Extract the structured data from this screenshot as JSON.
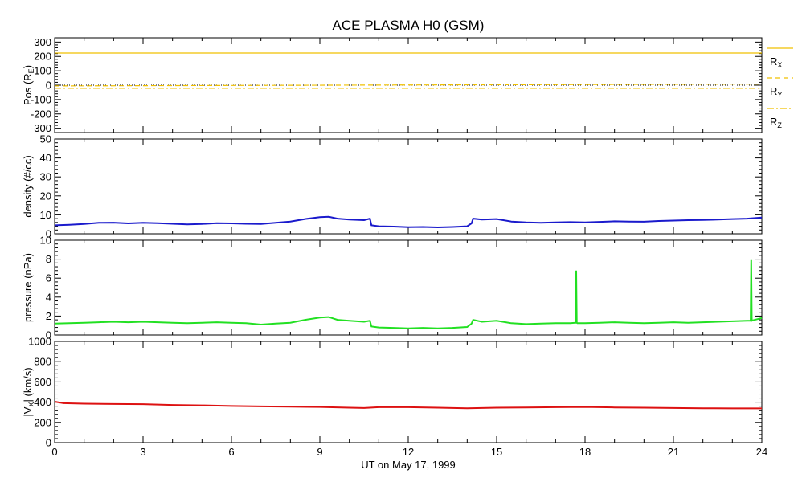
{
  "title": "ACE PLASMA H0 (GSM)",
  "xlabel": "UT on May 17, 1999",
  "x_ticks": [
    "0",
    "3",
    "6",
    "9",
    "12",
    "15",
    "18",
    "21",
    "24"
  ],
  "colors": {
    "rx": "#f0c000",
    "ry": "#f0c000",
    "rz": "#f0c000",
    "density": "#1a1acc",
    "pressure": "#22e022",
    "vx": "#dd1111",
    "axis": "#000000"
  },
  "chart_data": [
    {
      "type": "line",
      "panel": "position",
      "ylabel": {
        "main": "Pos (R",
        "sub": "E",
        "close": ")"
      },
      "ylim": [
        -330,
        330
      ],
      "y_ticks": [
        -300,
        -200,
        -100,
        0,
        100,
        200,
        300
      ],
      "x_range": [
        0,
        24
      ],
      "series": [
        {
          "name": "R",
          "sub": "X",
          "style": "solid",
          "x": [
            0,
            24
          ],
          "y": [
            224,
            224
          ]
        },
        {
          "name": "R",
          "sub": "Y",
          "style": "dashed",
          "x": [
            0,
            24
          ],
          "y": [
            -5,
            8
          ]
        },
        {
          "name": "R",
          "sub": "Z",
          "style": "dashdot",
          "x": [
            0,
            24
          ],
          "y": [
            -22,
            -22
          ]
        }
      ],
      "zero_line": true
    },
    {
      "type": "line",
      "panel": "density",
      "ylabel": {
        "main": "density (#/cc)"
      },
      "ylim": [
        0,
        50
      ],
      "y_ticks": [
        0,
        10,
        20,
        30,
        40,
        50
      ],
      "x_range": [
        0,
        24
      ],
      "series": [
        {
          "name": "density",
          "x": [
            0,
            0.5,
            1,
            1.5,
            2,
            2.5,
            3,
            3.5,
            4,
            4.5,
            5,
            5.5,
            6,
            6.5,
            7,
            7.5,
            8,
            8.5,
            9,
            9.3,
            9.6,
            10,
            10.5,
            10.7,
            10.75,
            11,
            11.5,
            12,
            12.5,
            13,
            13.5,
            14,
            14.15,
            14.2,
            14.5,
            15,
            15.5,
            16,
            16.5,
            17,
            17.5,
            18,
            18.5,
            19,
            19.5,
            20,
            20.5,
            21,
            21.5,
            22,
            22.5,
            23,
            23.5,
            24
          ],
          "y": [
            4.5,
            4.8,
            5.2,
            5.8,
            5.9,
            5.5,
            5.8,
            5.6,
            5.3,
            5.0,
            5.2,
            5.6,
            5.5,
            5.3,
            5.2,
            5.8,
            6.5,
            7.8,
            8.8,
            9.0,
            8.0,
            7.5,
            7.2,
            8.0,
            4.5,
            4.0,
            3.8,
            3.5,
            3.6,
            3.4,
            3.6,
            4.0,
            5.5,
            8.0,
            7.5,
            7.8,
            6.5,
            6.0,
            5.8,
            6.0,
            6.2,
            6.0,
            6.3,
            6.6,
            6.5,
            6.4,
            6.8,
            7.0,
            7.2,
            7.3,
            7.5,
            7.8,
            8.0,
            8.6
          ]
        }
      ]
    },
    {
      "type": "line",
      "panel": "pressure",
      "ylabel": {
        "main": "pressure (nPa)"
      },
      "ylim": [
        0,
        10
      ],
      "y_ticks": [
        0,
        2,
        4,
        6,
        8,
        10
      ],
      "x_range": [
        0,
        24
      ],
      "series": [
        {
          "name": "pressure",
          "x": [
            0,
            0.5,
            1,
            1.5,
            2,
            2.5,
            3,
            3.5,
            4,
            4.5,
            5,
            5.5,
            6,
            6.5,
            7,
            7.5,
            8,
            8.5,
            9,
            9.3,
            9.6,
            10,
            10.5,
            10.7,
            10.75,
            11,
            11.5,
            12,
            12.5,
            13,
            13.5,
            14,
            14.15,
            14.2,
            14.5,
            15,
            15.5,
            16,
            16.5,
            17,
            17.5,
            17.68,
            17.7,
            17.72,
            17.74,
            18,
            18.5,
            19,
            19.5,
            20,
            20.5,
            21,
            21.5,
            22,
            22.5,
            23,
            23.5,
            23.62,
            23.64,
            23.66,
            23.7,
            24
          ],
          "y": [
            1.2,
            1.25,
            1.3,
            1.35,
            1.4,
            1.35,
            1.4,
            1.35,
            1.3,
            1.25,
            1.3,
            1.35,
            1.3,
            1.25,
            1.1,
            1.2,
            1.3,
            1.6,
            1.85,
            1.9,
            1.6,
            1.5,
            1.4,
            1.5,
            0.9,
            0.8,
            0.75,
            0.7,
            0.75,
            0.7,
            0.75,
            0.85,
            1.2,
            1.6,
            1.4,
            1.5,
            1.25,
            1.15,
            1.2,
            1.25,
            1.25,
            1.3,
            6.8,
            1.3,
            1.25,
            1.25,
            1.3,
            1.35,
            1.3,
            1.25,
            1.3,
            1.35,
            1.3,
            1.35,
            1.4,
            1.45,
            1.5,
            1.5,
            7.9,
            1.5,
            1.55,
            1.8
          ]
        }
      ]
    },
    {
      "type": "line",
      "panel": "vx",
      "ylabel": {
        "main": "|V",
        "sub": "X",
        "close": "| (km/s)"
      },
      "ylim": [
        0,
        1000
      ],
      "y_ticks": [
        0,
        200,
        400,
        600,
        800,
        1000
      ],
      "x_range": [
        0,
        24
      ],
      "series": [
        {
          "name": "|Vx|",
          "x": [
            0,
            0.3,
            1,
            2,
            3,
            4,
            5,
            6,
            7,
            8,
            9,
            10,
            10.5,
            11,
            12,
            13,
            14,
            15,
            16,
            17,
            18,
            19,
            20,
            21,
            22,
            23,
            24
          ],
          "y": [
            405,
            390,
            385,
            382,
            380,
            372,
            368,
            362,
            358,
            355,
            352,
            345,
            342,
            350,
            350,
            345,
            340,
            345,
            348,
            350,
            352,
            348,
            345,
            342,
            340,
            338,
            338
          ]
        }
      ]
    }
  ]
}
